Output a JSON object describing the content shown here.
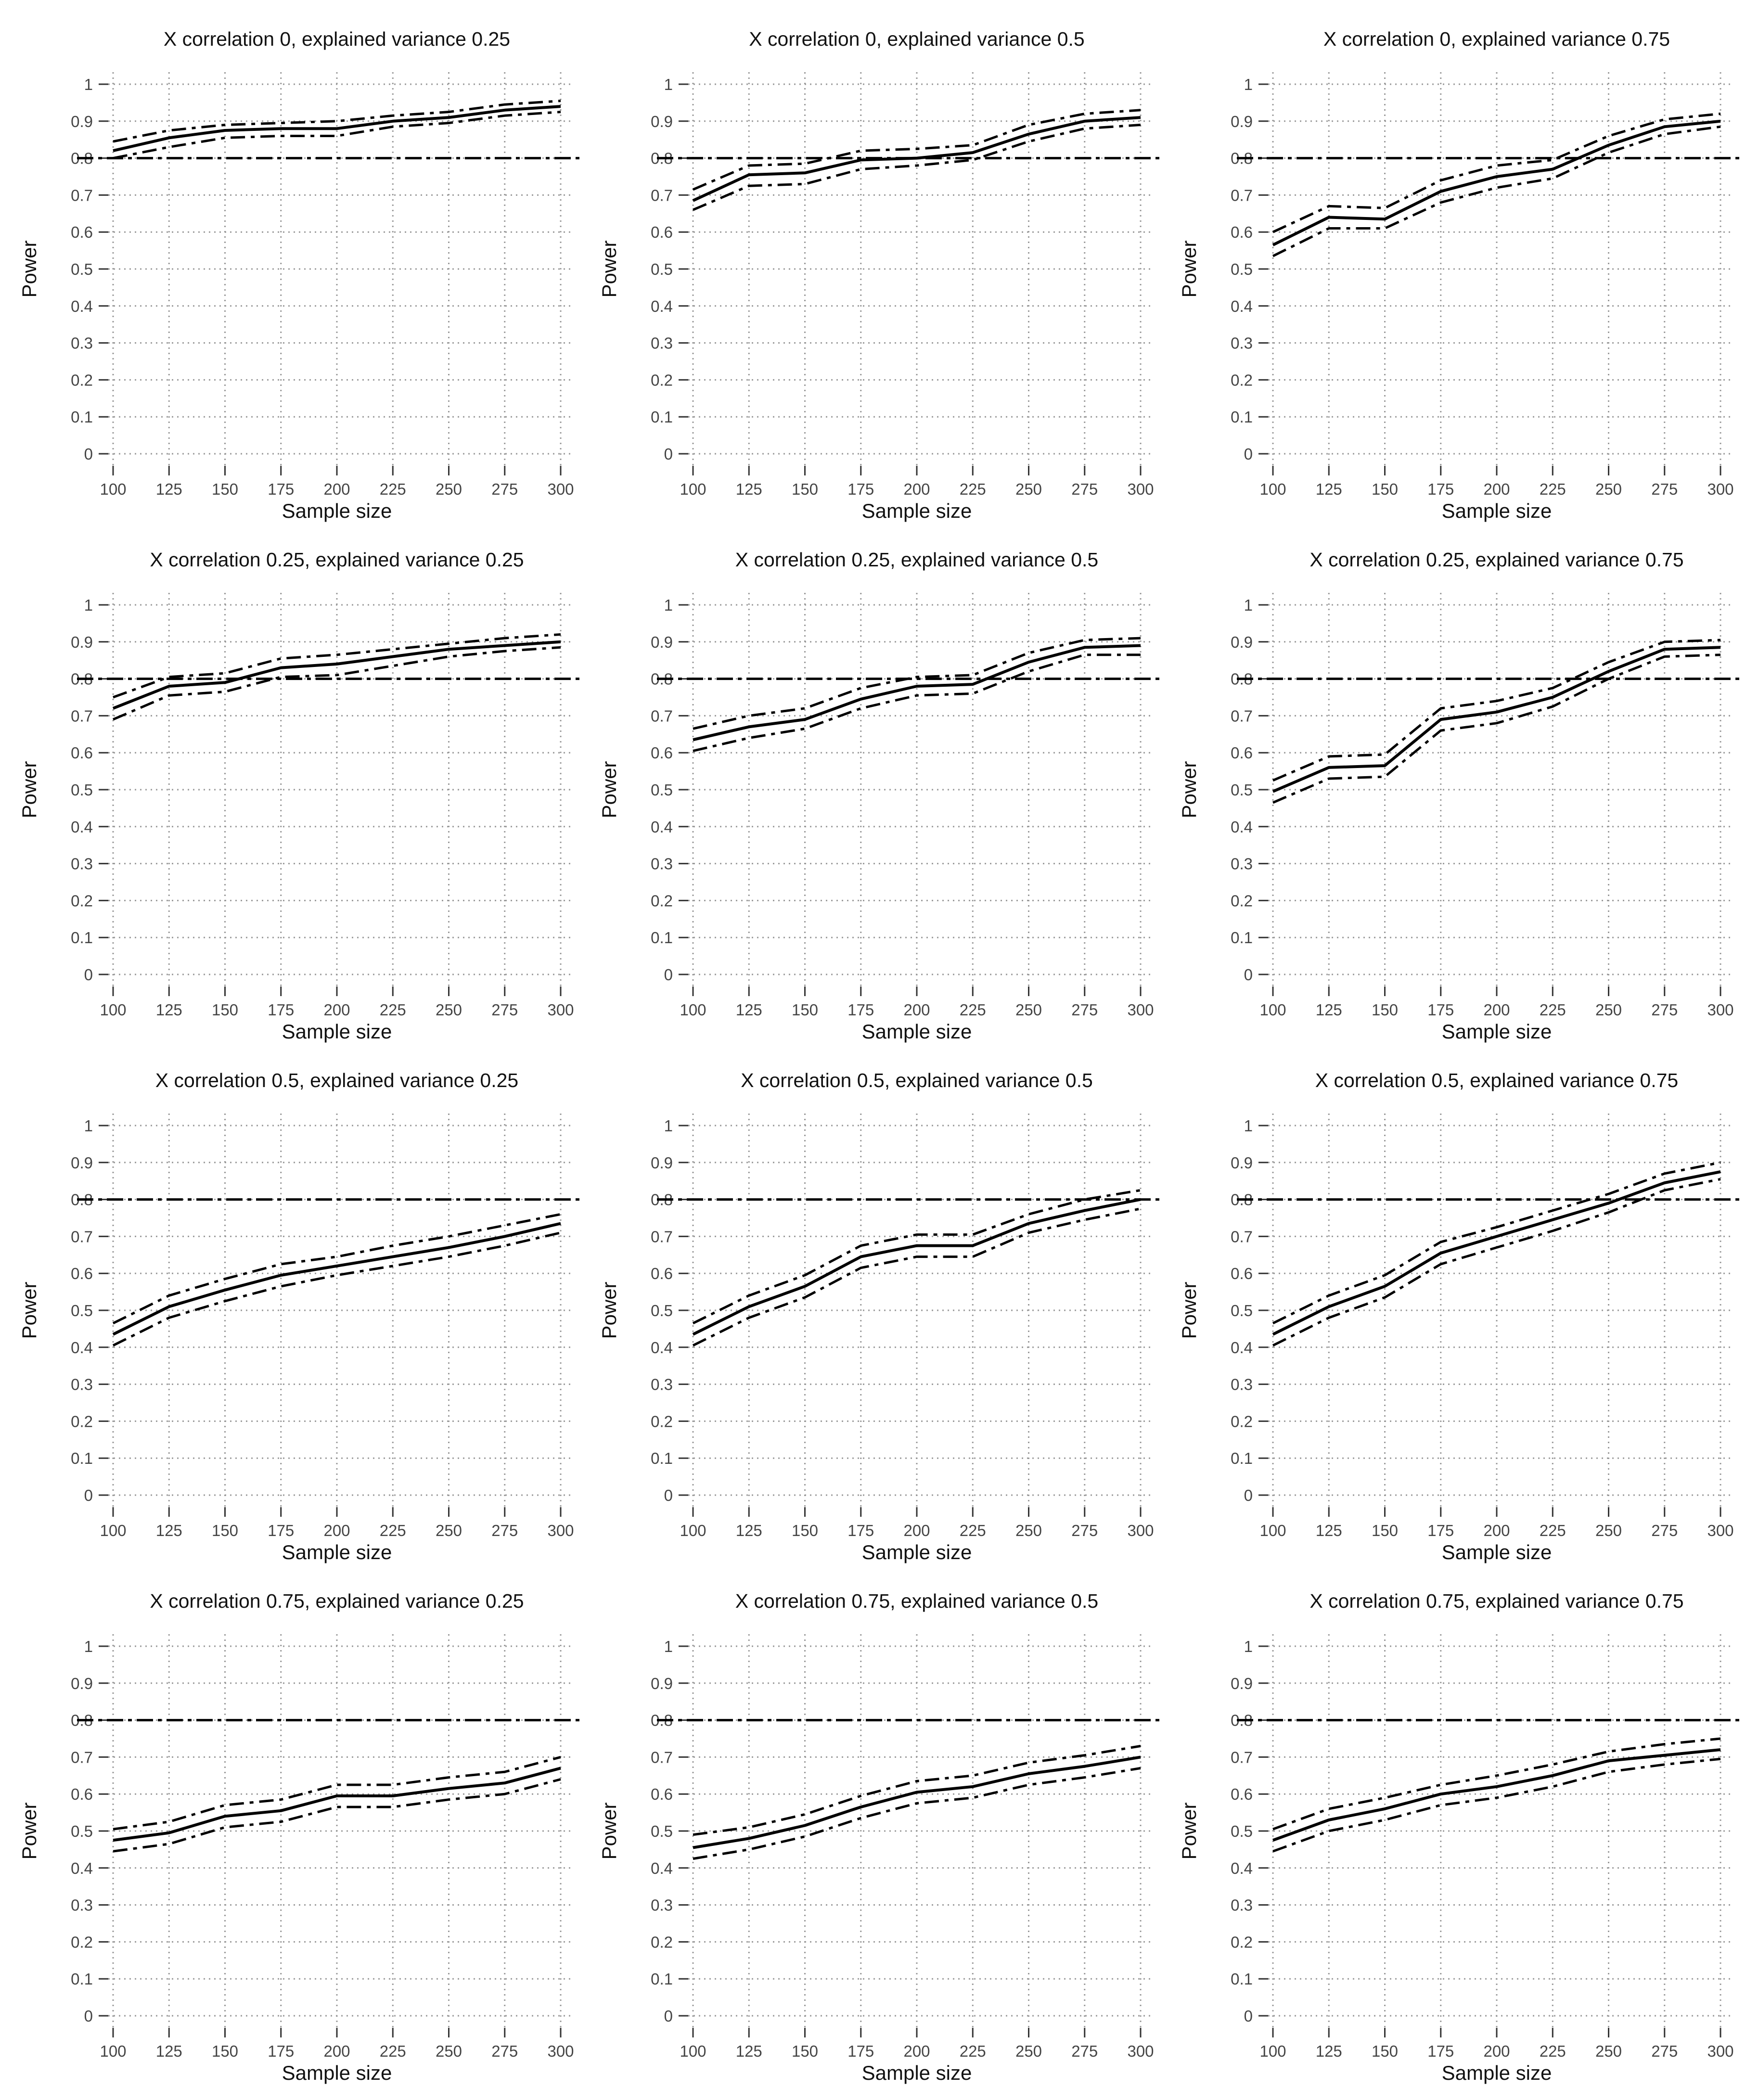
{
  "chart_data": [
    {
      "type": "line",
      "title": "X correlation 0, explained variance 0.25",
      "xlabel": "Sample size",
      "ylabel": "Power",
      "x": [
        100,
        125,
        150,
        175,
        200,
        225,
        250,
        275,
        300
      ],
      "x_ticks": [
        "100",
        "125",
        "150",
        "175",
        "200",
        "225",
        "250",
        "275",
        "300"
      ],
      "y_ticks": [
        "0",
        "0.1",
        "0.2",
        "0.3",
        "0.4",
        "0.5",
        "0.6",
        "0.7",
        "0.8",
        "0.9",
        "1"
      ],
      "xlim": [
        100,
        300
      ],
      "ylim": [
        0,
        1
      ],
      "grid": true,
      "reference_line": 0.8,
      "series": [
        {
          "style": "solid",
          "values": [
            0.82,
            0.855,
            0.875,
            0.88,
            0.88,
            0.9,
            0.91,
            0.93,
            0.94
          ]
        },
        {
          "style": "dash-dot",
          "values": [
            0.845,
            0.875,
            0.89,
            0.895,
            0.9,
            0.915,
            0.925,
            0.945,
            0.955
          ]
        },
        {
          "style": "dash-dot",
          "values": [
            0.8,
            0.83,
            0.855,
            0.86,
            0.86,
            0.885,
            0.895,
            0.915,
            0.925
          ]
        }
      ]
    },
    {
      "type": "line",
      "title": "X correlation 0, explained variance 0.5",
      "xlabel": "Sample size",
      "ylabel": "Power",
      "x": [
        100,
        125,
        150,
        175,
        200,
        225,
        250,
        275,
        300
      ],
      "x_ticks": [
        "100",
        "125",
        "150",
        "175",
        "200",
        "225",
        "250",
        "275",
        "300"
      ],
      "y_ticks": [
        "0",
        "0.1",
        "0.2",
        "0.3",
        "0.4",
        "0.5",
        "0.6",
        "0.7",
        "0.8",
        "0.9",
        "1"
      ],
      "xlim": [
        100,
        300
      ],
      "ylim": [
        0,
        1
      ],
      "grid": true,
      "reference_line": 0.8,
      "series": [
        {
          "style": "solid",
          "values": [
            0.685,
            0.755,
            0.76,
            0.795,
            0.8,
            0.815,
            0.865,
            0.9,
            0.91
          ]
        },
        {
          "style": "dash-dot",
          "values": [
            0.715,
            0.78,
            0.785,
            0.82,
            0.825,
            0.835,
            0.89,
            0.92,
            0.93
          ]
        },
        {
          "style": "dash-dot",
          "values": [
            0.66,
            0.725,
            0.73,
            0.77,
            0.78,
            0.795,
            0.845,
            0.88,
            0.89
          ]
        }
      ]
    },
    {
      "type": "line",
      "title": "X correlation 0, explained variance 0.75",
      "xlabel": "Sample size",
      "ylabel": "Power",
      "x": [
        100,
        125,
        150,
        175,
        200,
        225,
        250,
        275,
        300
      ],
      "x_ticks": [
        "100",
        "125",
        "150",
        "175",
        "200",
        "225",
        "250",
        "275",
        "300"
      ],
      "y_ticks": [
        "0",
        "0.1",
        "0.2",
        "0.3",
        "0.4",
        "0.5",
        "0.6",
        "0.7",
        "0.8",
        "0.9",
        "1"
      ],
      "xlim": [
        100,
        300
      ],
      "ylim": [
        0,
        1
      ],
      "grid": true,
      "reference_line": 0.8,
      "series": [
        {
          "style": "solid",
          "values": [
            0.565,
            0.64,
            0.635,
            0.71,
            0.75,
            0.77,
            0.835,
            0.885,
            0.9
          ]
        },
        {
          "style": "dash-dot",
          "values": [
            0.6,
            0.67,
            0.665,
            0.74,
            0.78,
            0.795,
            0.86,
            0.905,
            0.92
          ]
        },
        {
          "style": "dash-dot",
          "values": [
            0.535,
            0.61,
            0.61,
            0.68,
            0.72,
            0.745,
            0.815,
            0.865,
            0.885
          ]
        }
      ]
    },
    {
      "type": "line",
      "title": "X correlation 0.25, explained variance 0.25",
      "xlabel": "Sample size",
      "ylabel": "Power",
      "x": [
        100,
        125,
        150,
        175,
        200,
        225,
        250,
        275,
        300
      ],
      "x_ticks": [
        "100",
        "125",
        "150",
        "175",
        "200",
        "225",
        "250",
        "275",
        "300"
      ],
      "y_ticks": [
        "0",
        "0.1",
        "0.2",
        "0.3",
        "0.4",
        "0.5",
        "0.6",
        "0.7",
        "0.8",
        "0.9",
        "1"
      ],
      "xlim": [
        100,
        300
      ],
      "ylim": [
        0,
        1
      ],
      "grid": true,
      "reference_line": 0.8,
      "series": [
        {
          "style": "solid",
          "values": [
            0.72,
            0.78,
            0.79,
            0.83,
            0.84,
            0.86,
            0.88,
            0.89,
            0.9
          ]
        },
        {
          "style": "dash-dot",
          "values": [
            0.75,
            0.805,
            0.815,
            0.855,
            0.865,
            0.88,
            0.895,
            0.91,
            0.92
          ]
        },
        {
          "style": "dash-dot",
          "values": [
            0.69,
            0.755,
            0.765,
            0.805,
            0.81,
            0.835,
            0.86,
            0.875,
            0.885
          ]
        }
      ]
    },
    {
      "type": "line",
      "title": "X correlation 0.25, explained variance 0.5",
      "xlabel": "Sample size",
      "ylabel": "Power",
      "x": [
        100,
        125,
        150,
        175,
        200,
        225,
        250,
        275,
        300
      ],
      "x_ticks": [
        "100",
        "125",
        "150",
        "175",
        "200",
        "225",
        "250",
        "275",
        "300"
      ],
      "y_ticks": [
        "0",
        "0.1",
        "0.2",
        "0.3",
        "0.4",
        "0.5",
        "0.6",
        "0.7",
        "0.8",
        "0.9",
        "1"
      ],
      "xlim": [
        100,
        300
      ],
      "ylim": [
        0,
        1
      ],
      "grid": true,
      "reference_line": 0.8,
      "series": [
        {
          "style": "solid",
          "values": [
            0.635,
            0.67,
            0.69,
            0.745,
            0.78,
            0.785,
            0.845,
            0.885,
            0.89
          ]
        },
        {
          "style": "dash-dot",
          "values": [
            0.665,
            0.7,
            0.72,
            0.775,
            0.805,
            0.81,
            0.87,
            0.905,
            0.91
          ]
        },
        {
          "style": "dash-dot",
          "values": [
            0.605,
            0.64,
            0.665,
            0.72,
            0.755,
            0.76,
            0.82,
            0.865,
            0.865
          ]
        }
      ]
    },
    {
      "type": "line",
      "title": "X correlation 0.25, explained variance 0.75",
      "xlabel": "Sample size",
      "ylabel": "Power",
      "x": [
        100,
        125,
        150,
        175,
        200,
        225,
        250,
        275,
        300
      ],
      "x_ticks": [
        "100",
        "125",
        "150",
        "175",
        "200",
        "225",
        "250",
        "275",
        "300"
      ],
      "y_ticks": [
        "0",
        "0.1",
        "0.2",
        "0.3",
        "0.4",
        "0.5",
        "0.6",
        "0.7",
        "0.8",
        "0.9",
        "1"
      ],
      "xlim": [
        100,
        300
      ],
      "ylim": [
        0,
        1
      ],
      "grid": true,
      "reference_line": 0.8,
      "series": [
        {
          "style": "solid",
          "values": [
            0.495,
            0.56,
            0.565,
            0.69,
            0.71,
            0.75,
            0.82,
            0.88,
            0.885
          ]
        },
        {
          "style": "dash-dot",
          "values": [
            0.525,
            0.59,
            0.595,
            0.72,
            0.74,
            0.775,
            0.845,
            0.9,
            0.905
          ]
        },
        {
          "style": "dash-dot",
          "values": [
            0.465,
            0.53,
            0.535,
            0.66,
            0.68,
            0.725,
            0.8,
            0.86,
            0.865
          ]
        }
      ]
    },
    {
      "type": "line",
      "title": "X correlation 0.5, explained variance 0.25",
      "xlabel": "Sample size",
      "ylabel": "Power",
      "x": [
        100,
        125,
        150,
        175,
        200,
        225,
        250,
        275,
        300
      ],
      "x_ticks": [
        "100",
        "125",
        "150",
        "175",
        "200",
        "225",
        "250",
        "275",
        "300"
      ],
      "y_ticks": [
        "0",
        "0.1",
        "0.2",
        "0.3",
        "0.4",
        "0.5",
        "0.6",
        "0.7",
        "0.8",
        "0.9",
        "1"
      ],
      "xlim": [
        100,
        300
      ],
      "ylim": [
        0,
        1
      ],
      "grid": true,
      "reference_line": 0.8,
      "series": [
        {
          "style": "solid",
          "values": [
            0.435,
            0.51,
            0.555,
            0.595,
            0.62,
            0.645,
            0.67,
            0.7,
            0.735
          ]
        },
        {
          "style": "dash-dot",
          "values": [
            0.465,
            0.54,
            0.585,
            0.625,
            0.645,
            0.675,
            0.7,
            0.73,
            0.76
          ]
        },
        {
          "style": "dash-dot",
          "values": [
            0.405,
            0.48,
            0.525,
            0.565,
            0.595,
            0.62,
            0.645,
            0.675,
            0.71
          ]
        }
      ]
    },
    {
      "type": "line",
      "title": "X correlation 0.5, explained variance 0.5",
      "xlabel": "Sample size",
      "ylabel": "Power",
      "x": [
        100,
        125,
        150,
        175,
        200,
        225,
        250,
        275,
        300
      ],
      "x_ticks": [
        "100",
        "125",
        "150",
        "175",
        "200",
        "225",
        "250",
        "275",
        "300"
      ],
      "y_ticks": [
        "0",
        "0.1",
        "0.2",
        "0.3",
        "0.4",
        "0.5",
        "0.6",
        "0.7",
        "0.8",
        "0.9",
        "1"
      ],
      "xlim": [
        100,
        300
      ],
      "ylim": [
        0,
        1
      ],
      "grid": true,
      "reference_line": 0.8,
      "series": [
        {
          "style": "solid",
          "values": [
            0.435,
            0.51,
            0.565,
            0.645,
            0.675,
            0.675,
            0.735,
            0.77,
            0.8
          ]
        },
        {
          "style": "dash-dot",
          "values": [
            0.465,
            0.54,
            0.595,
            0.675,
            0.705,
            0.705,
            0.76,
            0.8,
            0.825
          ]
        },
        {
          "style": "dash-dot",
          "values": [
            0.405,
            0.48,
            0.535,
            0.615,
            0.645,
            0.645,
            0.71,
            0.745,
            0.775
          ]
        }
      ]
    },
    {
      "type": "line",
      "title": "X correlation 0.5, explained variance 0.75",
      "xlabel": "Sample size",
      "ylabel": "Power",
      "x": [
        100,
        125,
        150,
        175,
        200,
        225,
        250,
        275,
        300
      ],
      "x_ticks": [
        "100",
        "125",
        "150",
        "175",
        "200",
        "225",
        "250",
        "275",
        "300"
      ],
      "y_ticks": [
        "0",
        "0.1",
        "0.2",
        "0.3",
        "0.4",
        "0.5",
        "0.6",
        "0.7",
        "0.8",
        "0.9",
        "1"
      ],
      "xlim": [
        100,
        300
      ],
      "ylim": [
        0,
        1
      ],
      "grid": true,
      "reference_line": 0.8,
      "series": [
        {
          "style": "solid",
          "values": [
            0.435,
            0.51,
            0.565,
            0.655,
            0.7,
            0.745,
            0.79,
            0.845,
            0.875
          ]
        },
        {
          "style": "dash-dot",
          "values": [
            0.465,
            0.54,
            0.595,
            0.685,
            0.725,
            0.77,
            0.815,
            0.87,
            0.9
          ]
        },
        {
          "style": "dash-dot",
          "values": [
            0.405,
            0.48,
            0.535,
            0.625,
            0.67,
            0.715,
            0.765,
            0.825,
            0.855
          ]
        }
      ]
    },
    {
      "type": "line",
      "title": "X correlation 0.75, explained variance 0.25",
      "xlabel": "Sample size",
      "ylabel": "Power",
      "x": [
        100,
        125,
        150,
        175,
        200,
        225,
        250,
        275,
        300
      ],
      "x_ticks": [
        "100",
        "125",
        "150",
        "175",
        "200",
        "225",
        "250",
        "275",
        "300"
      ],
      "y_ticks": [
        "0",
        "0.1",
        "0.2",
        "0.3",
        "0.4",
        "0.5",
        "0.6",
        "0.7",
        "0.8",
        "0.9",
        "1"
      ],
      "xlim": [
        100,
        300
      ],
      "ylim": [
        0,
        1
      ],
      "grid": true,
      "reference_line": 0.8,
      "series": [
        {
          "style": "solid",
          "values": [
            0.475,
            0.495,
            0.54,
            0.555,
            0.595,
            0.595,
            0.615,
            0.63,
            0.67
          ]
        },
        {
          "style": "dash-dot",
          "values": [
            0.505,
            0.525,
            0.57,
            0.585,
            0.625,
            0.625,
            0.645,
            0.66,
            0.7
          ]
        },
        {
          "style": "dash-dot",
          "values": [
            0.445,
            0.465,
            0.51,
            0.525,
            0.565,
            0.565,
            0.585,
            0.6,
            0.64
          ]
        }
      ]
    },
    {
      "type": "line",
      "title": "X correlation 0.75, explained variance 0.5",
      "xlabel": "Sample size",
      "ylabel": "Power",
      "x": [
        100,
        125,
        150,
        175,
        200,
        225,
        250,
        275,
        300
      ],
      "x_ticks": [
        "100",
        "125",
        "150",
        "175",
        "200",
        "225",
        "250",
        "275",
        "300"
      ],
      "y_ticks": [
        "0",
        "0.1",
        "0.2",
        "0.3",
        "0.4",
        "0.5",
        "0.6",
        "0.7",
        "0.8",
        "0.9",
        "1"
      ],
      "xlim": [
        100,
        300
      ],
      "ylim": [
        0,
        1
      ],
      "grid": true,
      "reference_line": 0.8,
      "series": [
        {
          "style": "solid",
          "values": [
            0.455,
            0.48,
            0.515,
            0.565,
            0.605,
            0.62,
            0.655,
            0.675,
            0.7
          ]
        },
        {
          "style": "dash-dot",
          "values": [
            0.49,
            0.51,
            0.545,
            0.595,
            0.635,
            0.65,
            0.685,
            0.705,
            0.73
          ]
        },
        {
          "style": "dash-dot",
          "values": [
            0.425,
            0.45,
            0.485,
            0.535,
            0.575,
            0.59,
            0.625,
            0.645,
            0.67
          ]
        }
      ]
    },
    {
      "type": "line",
      "title": "X correlation 0.75, explained variance 0.75",
      "xlabel": "Sample size",
      "ylabel": "Power",
      "x": [
        100,
        125,
        150,
        175,
        200,
        225,
        250,
        275,
        300
      ],
      "x_ticks": [
        "100",
        "125",
        "150",
        "175",
        "200",
        "225",
        "250",
        "275",
        "300"
      ],
      "y_ticks": [
        "0",
        "0.1",
        "0.2",
        "0.3",
        "0.4",
        "0.5",
        "0.6",
        "0.7",
        "0.8",
        "0.9",
        "1"
      ],
      "xlim": [
        100,
        300
      ],
      "ylim": [
        0,
        1
      ],
      "grid": true,
      "reference_line": 0.8,
      "series": [
        {
          "style": "solid",
          "values": [
            0.475,
            0.53,
            0.56,
            0.6,
            0.62,
            0.65,
            0.69,
            0.705,
            0.72
          ]
        },
        {
          "style": "dash-dot",
          "values": [
            0.505,
            0.56,
            0.59,
            0.625,
            0.65,
            0.68,
            0.715,
            0.735,
            0.75
          ]
        },
        {
          "style": "dash-dot",
          "values": [
            0.445,
            0.5,
            0.53,
            0.57,
            0.59,
            0.62,
            0.66,
            0.68,
            0.695
          ]
        }
      ]
    }
  ]
}
